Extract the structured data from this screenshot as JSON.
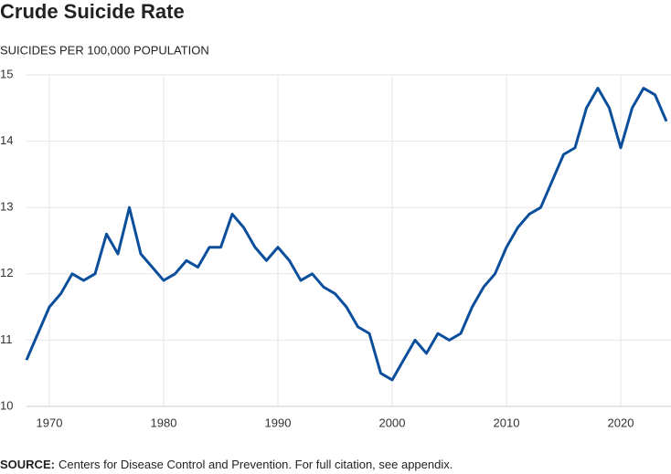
{
  "chart_data": {
    "type": "line",
    "title": "Crude Suicide Rate",
    "y_axis_label": "SUICIDES PER 100,000 POPULATION",
    "source_label": "SOURCE:",
    "source_text": "Centers for Disease Control and Prevention. For full citation, see appendix.",
    "x": [
      1968,
      1969,
      1970,
      1971,
      1972,
      1973,
      1974,
      1975,
      1976,
      1977,
      1978,
      1979,
      1980,
      1981,
      1982,
      1983,
      1984,
      1985,
      1986,
      1987,
      1988,
      1989,
      1990,
      1991,
      1992,
      1993,
      1994,
      1995,
      1996,
      1997,
      1998,
      1999,
      2000,
      2001,
      2002,
      2003,
      2004,
      2005,
      2006,
      2007,
      2008,
      2009,
      2010,
      2011,
      2012,
      2013,
      2014,
      2015,
      2016,
      2017,
      2018,
      2019,
      2020,
      2021,
      2022,
      2023,
      2024
    ],
    "series": [
      {
        "name": "Crude suicide rate",
        "color": "#0b4f9c",
        "values": [
          10.7,
          11.1,
          11.5,
          11.7,
          12.0,
          11.9,
          12.0,
          12.6,
          12.3,
          13.0,
          12.3,
          12.1,
          11.9,
          12.0,
          12.2,
          12.1,
          12.4,
          12.4,
          12.9,
          12.7,
          12.4,
          12.2,
          12.4,
          12.2,
          11.9,
          12.0,
          11.8,
          11.7,
          11.5,
          11.2,
          11.1,
          10.5,
          10.4,
          10.7,
          11.0,
          10.8,
          11.1,
          11.0,
          11.1,
          11.5,
          11.8,
          12.0,
          12.4,
          12.7,
          12.9,
          13.0,
          13.4,
          13.8,
          13.9,
          14.5,
          14.8,
          14.5,
          13.9,
          14.5,
          14.8,
          14.7,
          14.3
        ]
      }
    ],
    "xlim": [
      1968,
      2024
    ],
    "xticks": [
      1970,
      1980,
      1990,
      2000,
      2010,
      2020
    ],
    "ylim": [
      10,
      15
    ],
    "yticks": [
      10,
      11,
      12,
      13,
      14,
      15
    ],
    "grid": true
  }
}
